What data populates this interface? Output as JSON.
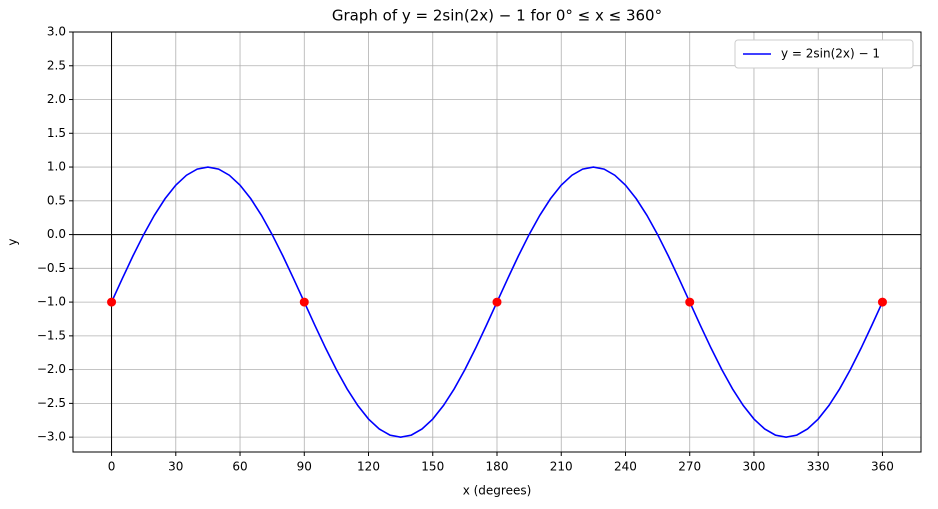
{
  "chart_data": {
    "type": "line",
    "title": "Graph of y = 2sin(2x) − 1 for 0° ≤ x ≤ 360°",
    "x_label": "x (degrees)",
    "y_label": "y",
    "x": [
      0,
      5,
      10,
      15,
      20,
      25,
      30,
      35,
      40,
      45,
      50,
      55,
      60,
      65,
      70,
      75,
      80,
      85,
      90,
      95,
      100,
      105,
      110,
      115,
      120,
      125,
      130,
      135,
      140,
      145,
      150,
      155,
      160,
      165,
      170,
      175,
      180,
      185,
      190,
      195,
      200,
      205,
      210,
      215,
      220,
      225,
      230,
      235,
      240,
      245,
      250,
      255,
      260,
      265,
      270,
      275,
      280,
      285,
      290,
      295,
      300,
      305,
      310,
      315,
      320,
      325,
      330,
      335,
      340,
      345,
      350,
      355,
      360
    ],
    "series": [
      {
        "name": "y = 2sin(2x) − 1",
        "color": "#0000ff",
        "values": [
          -1,
          -0.653,
          -0.316,
          0,
          0.286,
          0.532,
          0.732,
          0.879,
          0.97,
          1,
          0.97,
          0.879,
          0.732,
          0.532,
          0.286,
          0,
          -0.316,
          -0.653,
          -1,
          -1.347,
          -1.684,
          -2,
          -2.286,
          -2.532,
          -2.732,
          -2.879,
          -2.97,
          -3,
          -2.97,
          -2.879,
          -2.732,
          -2.532,
          -2.286,
          -2,
          -1.684,
          -1.347,
          -1,
          -0.653,
          -0.316,
          0,
          0.286,
          0.532,
          0.732,
          0.879,
          0.97,
          1,
          0.97,
          0.879,
          0.732,
          0.532,
          0.286,
          0,
          -0.316,
          -0.653,
          -1,
          -1.347,
          -1.684,
          -2,
          -2.286,
          -2.532,
          -2.732,
          -2.879,
          -2.97,
          -3,
          -2.97,
          -2.879,
          -2.732,
          -2.532,
          -2.286,
          -2,
          -1.684,
          -1.347,
          -1
        ]
      }
    ],
    "points": {
      "x": [
        0,
        90,
        180,
        270,
        360
      ],
      "values": [
        -1,
        -1,
        -1,
        -1,
        -1
      ],
      "color": "#ff0000"
    },
    "xlim": [
      -18,
      378
    ],
    "ylim": [
      -3.22,
      3.0
    ],
    "xticks": [
      0,
      30,
      60,
      90,
      120,
      150,
      180,
      210,
      240,
      270,
      300,
      330,
      360
    ],
    "yticks": [
      {
        "value": -3,
        "label": "−3.0"
      },
      {
        "value": -2.5,
        "label": "−2.5"
      },
      {
        "value": -2,
        "label": "−2.0"
      },
      {
        "value": -1.5,
        "label": "−1.5"
      },
      {
        "value": -1,
        "label": "−1.0"
      },
      {
        "value": -0.5,
        "label": "−0.5"
      },
      {
        "value": 0,
        "label": "0.0"
      },
      0.5,
      {
        "value": 1,
        "label": "1.0"
      },
      1.5,
      {
        "value": 2,
        "label": "2.0"
      },
      2.5,
      {
        "value": 3,
        "label": "3.0"
      }
    ],
    "grid": true,
    "legend": "upper right"
  }
}
